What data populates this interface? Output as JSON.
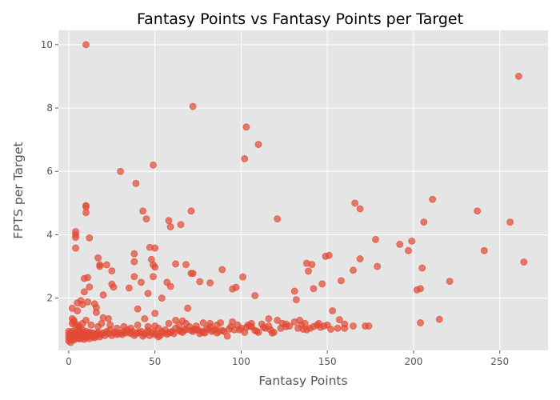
{
  "chart_data": {
    "type": "scatter",
    "title": "Fantasy Points vs Fantasy Points per Target",
    "xlabel": "Fantasy Points",
    "ylabel": "FPTS per Target",
    "xlim": [
      -6,
      278
    ],
    "ylim": [
      0.35,
      10.45
    ],
    "xticks": [
      0,
      50,
      100,
      150,
      200,
      250
    ],
    "yticks": [
      2,
      4,
      6,
      8,
      10
    ],
    "grid": true,
    "color": "#E24A33",
    "background": "#E5E5E5",
    "points": [
      [
        10,
        10.0
      ],
      [
        261,
        9.0
      ],
      [
        72,
        8.05
      ],
      [
        103,
        7.4
      ],
      [
        110,
        6.85
      ],
      [
        102,
        6.4
      ],
      [
        49,
        6.2
      ],
      [
        30,
        6.0
      ],
      [
        39,
        5.62
      ],
      [
        211,
        5.12
      ],
      [
        166,
        5.0
      ],
      [
        169,
        4.82
      ],
      [
        10,
        4.92
      ],
      [
        10,
        4.88
      ],
      [
        10,
        4.7
      ],
      [
        43,
        4.75
      ],
      [
        71,
        4.75
      ],
      [
        237,
        4.75
      ],
      [
        121,
        4.5
      ],
      [
        45,
        4.5
      ],
      [
        58,
        4.45
      ],
      [
        206,
        4.4
      ],
      [
        256,
        4.4
      ],
      [
        65,
        4.32
      ],
      [
        59,
        4.25
      ],
      [
        4,
        4.1
      ],
      [
        4,
        4.0
      ],
      [
        4,
        3.92
      ],
      [
        12,
        3.9
      ],
      [
        178,
        3.85
      ],
      [
        199,
        3.8
      ],
      [
        192,
        3.7
      ],
      [
        47,
        3.6
      ],
      [
        50,
        3.58
      ],
      [
        4,
        3.58
      ],
      [
        197,
        3.5
      ],
      [
        241,
        3.5
      ],
      [
        38,
        3.4
      ],
      [
        151,
        3.35
      ],
      [
        149,
        3.32
      ],
      [
        17,
        3.27
      ],
      [
        48,
        3.22
      ],
      [
        169,
        3.24
      ],
      [
        264,
        3.14
      ],
      [
        38,
        3.15
      ],
      [
        62,
        3.08
      ],
      [
        68,
        3.06
      ],
      [
        18,
        3.05
      ],
      [
        22,
        3.05
      ],
      [
        18,
        3.0
      ],
      [
        49,
        3.05
      ],
      [
        50,
        2.98
      ],
      [
        138,
        3.1
      ],
      [
        141,
        3.06
      ],
      [
        179,
        3.0
      ],
      [
        205,
        2.95
      ],
      [
        89,
        2.9
      ],
      [
        139,
        2.85
      ],
      [
        165,
        2.88
      ],
      [
        25,
        2.86
      ],
      [
        9,
        2.62
      ],
      [
        11,
        2.65
      ],
      [
        71,
        2.78
      ],
      [
        72,
        2.78
      ],
      [
        101,
        2.67
      ],
      [
        49,
        2.68
      ],
      [
        38,
        2.68
      ],
      [
        42,
        2.5
      ],
      [
        57,
        2.5
      ],
      [
        76,
        2.52
      ],
      [
        82,
        2.48
      ],
      [
        158,
        2.55
      ],
      [
        221,
        2.53
      ],
      [
        25,
        2.44
      ],
      [
        26,
        2.35
      ],
      [
        35,
        2.32
      ],
      [
        59,
        2.37
      ],
      [
        95,
        2.29
      ],
      [
        97,
        2.34
      ],
      [
        131,
        2.22
      ],
      [
        142,
        2.3
      ],
      [
        147,
        2.45
      ],
      [
        202,
        2.26
      ],
      [
        204,
        2.3
      ],
      [
        12,
        2.35
      ],
      [
        9,
        2.2
      ],
      [
        20,
        2.1
      ],
      [
        46,
        2.15
      ],
      [
        54,
        2.0
      ],
      [
        108,
        2.08
      ],
      [
        132,
        1.95
      ],
      [
        5,
        1.85
      ],
      [
        7,
        1.92
      ],
      [
        8,
        1.8
      ],
      [
        11,
        1.88
      ],
      [
        15,
        1.82
      ],
      [
        16,
        1.7
      ],
      [
        2,
        1.68
      ],
      [
        5,
        1.6
      ],
      [
        16,
        1.55
      ],
      [
        40,
        1.66
      ],
      [
        69,
        1.68
      ],
      [
        50,
        1.52
      ],
      [
        153,
        1.6
      ],
      [
        20,
        1.38
      ],
      [
        23,
        1.35
      ],
      [
        44,
        1.35
      ],
      [
        62,
        1.3
      ],
      [
        66,
        1.28
      ],
      [
        116,
        1.35
      ],
      [
        134,
        1.3
      ],
      [
        157,
        1.32
      ],
      [
        215,
        1.33
      ],
      [
        10,
        1.3
      ],
      [
        121,
        1.3
      ],
      [
        3,
        1.3
      ],
      [
        88,
        1.22
      ],
      [
        78,
        1.22
      ],
      [
        82,
        1.2
      ],
      [
        95,
        1.25
      ],
      [
        98,
        1.15
      ],
      [
        104,
        1.15
      ],
      [
        112,
        1.18
      ],
      [
        124,
        1.2
      ],
      [
        131,
        1.25
      ],
      [
        137,
        1.2
      ],
      [
        144,
        1.15
      ],
      [
        150,
        1.15
      ],
      [
        160,
        1.18
      ],
      [
        165,
        1.12
      ],
      [
        172,
        1.12
      ],
      [
        174,
        1.12
      ],
      [
        204,
        1.22
      ],
      [
        2,
        1.2
      ],
      [
        4,
        1.1
      ],
      [
        6,
        1.05
      ],
      [
        8,
        1.0
      ],
      [
        10,
        0.95
      ],
      [
        12,
        0.92
      ],
      [
        14,
        0.9
      ],
      [
        16,
        0.88
      ],
      [
        18,
        0.86
      ],
      [
        20,
        0.9
      ],
      [
        22,
        0.95
      ],
      [
        24,
        1.0
      ],
      [
        26,
        0.9
      ],
      [
        28,
        0.85
      ],
      [
        30,
        0.9
      ],
      [
        32,
        0.95
      ],
      [
        34,
        1.0
      ],
      [
        36,
        0.88
      ],
      [
        38,
        0.82
      ],
      [
        40,
        0.92
      ],
      [
        42,
        0.95
      ],
      [
        44,
        0.85
      ],
      [
        46,
        0.98
      ],
      [
        48,
        0.9
      ],
      [
        50,
        0.85
      ],
      [
        52,
        0.78
      ],
      [
        54,
        0.95
      ],
      [
        56,
        1.0
      ],
      [
        58,
        0.9
      ],
      [
        60,
        0.95
      ],
      [
        62,
        1.05
      ],
      [
        64,
        0.98
      ],
      [
        66,
        0.92
      ],
      [
        68,
        1.0
      ],
      [
        70,
        1.1
      ],
      [
        72,
        0.95
      ],
      [
        74,
        1.0
      ],
      [
        76,
        0.88
      ],
      [
        78,
        0.92
      ],
      [
        80,
        1.05
      ],
      [
        84,
        0.98
      ],
      [
        86,
        0.9
      ],
      [
        90,
        0.95
      ],
      [
        92,
        0.8
      ],
      [
        96,
        1.0
      ],
      [
        100,
        1.05
      ],
      [
        102,
        0.92
      ],
      [
        106,
        1.1
      ],
      [
        108,
        0.98
      ],
      [
        110,
        0.92
      ],
      [
        114,
        1.05
      ],
      [
        118,
        0.9
      ],
      [
        126,
        1.1
      ],
      [
        136,
        1.02
      ],
      [
        140,
        1.05
      ],
      [
        146,
        1.08
      ],
      [
        152,
        1.02
      ],
      [
        160,
        1.05
      ],
      [
        0,
        0.95
      ],
      [
        0,
        0.85
      ],
      [
        0,
        0.75
      ],
      [
        0,
        0.65
      ],
      [
        1,
        0.9
      ],
      [
        1,
        0.8
      ],
      [
        1,
        0.7
      ],
      [
        1,
        0.6
      ],
      [
        2,
        0.95
      ],
      [
        2,
        0.85
      ],
      [
        2,
        0.75
      ],
      [
        2,
        0.7
      ],
      [
        3,
        0.88
      ],
      [
        3,
        0.78
      ],
      [
        3,
        0.68
      ],
      [
        4,
        0.9
      ],
      [
        4,
        0.8
      ],
      [
        4,
        0.72
      ],
      [
        5,
        0.95
      ],
      [
        5,
        0.85
      ],
      [
        5,
        0.75
      ],
      [
        6,
        0.88
      ],
      [
        6,
        0.8
      ],
      [
        6,
        0.72
      ],
      [
        7,
        0.92
      ],
      [
        7,
        0.82
      ],
      [
        7,
        0.72
      ],
      [
        8,
        0.85
      ],
      [
        8,
        0.75
      ],
      [
        9,
        0.9
      ],
      [
        9,
        0.8
      ],
      [
        9,
        0.7
      ],
      [
        10,
        0.85
      ],
      [
        10,
        0.75
      ],
      [
        11,
        0.88
      ],
      [
        11,
        0.78
      ],
      [
        12,
        0.82
      ],
      [
        12,
        0.72
      ],
      [
        13,
        0.9
      ],
      [
        13,
        0.8
      ],
      [
        14,
        0.78
      ],
      [
        15,
        0.85
      ],
      [
        15,
        0.75
      ],
      [
        16,
        0.8
      ],
      [
        17,
        0.92
      ],
      [
        18,
        0.78
      ],
      [
        19,
        0.85
      ],
      [
        21,
        0.82
      ],
      [
        23,
        0.88
      ],
      [
        25,
        0.82
      ],
      [
        27,
        0.92
      ],
      [
        29,
        0.88
      ],
      [
        31,
        0.85
      ],
      [
        33,
        0.9
      ],
      [
        35,
        0.92
      ],
      [
        37,
        0.95
      ],
      [
        39,
        0.88
      ],
      [
        41,
        0.9
      ],
      [
        43,
        0.8
      ],
      [
        45,
        0.92
      ],
      [
        47,
        0.82
      ],
      [
        49,
        0.95
      ],
      [
        51,
        0.88
      ],
      [
        53,
        0.82
      ],
      [
        55,
        0.9
      ],
      [
        57,
        0.86
      ],
      [
        59,
        0.92
      ],
      [
        61,
        0.88
      ],
      [
        65,
        0.95
      ],
      [
        67,
        1.0
      ],
      [
        71,
        0.98
      ],
      [
        73,
        1.02
      ],
      [
        75,
        1.0
      ],
      [
        77,
        0.95
      ],
      [
        79,
        0.9
      ],
      [
        81,
        1.02
      ],
      [
        83,
        0.95
      ],
      [
        85,
        1.0
      ],
      [
        87,
        0.95
      ],
      [
        89,
        0.98
      ],
      [
        93,
        1.02
      ],
      [
        99,
        1.0
      ],
      [
        103,
        1.08
      ],
      [
        105,
        1.12
      ],
      [
        109,
        0.96
      ],
      [
        113,
        1.08
      ],
      [
        117,
        1.0
      ],
      [
        119,
        0.92
      ],
      [
        123,
        1.05
      ],
      [
        128,
        1.12
      ],
      [
        133,
        1.05
      ],
      [
        138,
        1.0
      ],
      [
        142,
        1.1
      ],
      [
        148,
        1.12
      ],
      [
        156,
        1.05
      ],
      [
        2,
        1.35
      ],
      [
        3,
        1.25
      ],
      [
        5,
        1.15
      ],
      [
        6,
        1.1
      ],
      [
        8,
        1.2
      ],
      [
        13,
        1.15
      ],
      [
        17,
        1.1
      ],
      [
        19,
        1.2
      ],
      [
        24,
        1.15
      ],
      [
        28,
        1.05
      ],
      [
        32,
        1.1
      ],
      [
        36,
        1.05
      ],
      [
        40,
        1.15
      ],
      [
        46,
        1.1
      ],
      [
        50,
        1.12
      ],
      [
        52,
        1.05
      ],
      [
        58,
        1.2
      ],
      [
        64,
        1.15
      ],
      [
        68,
        1.2
      ],
      [
        74,
        1.12
      ],
      [
        82,
        1.1
      ],
      [
        86,
        1.15
      ],
      [
        94,
        1.1
      ],
      [
        106,
        1.2
      ],
      [
        116,
        1.12
      ],
      [
        126,
        1.18
      ],
      [
        135,
        1.15
      ],
      [
        145,
        1.2
      ]
    ]
  }
}
